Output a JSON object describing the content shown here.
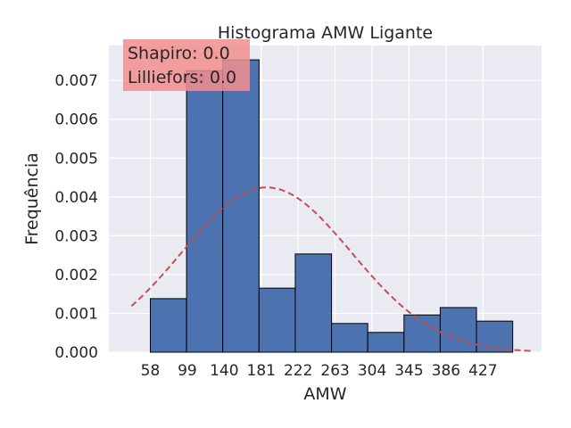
{
  "chart_data": {
    "type": "bar",
    "title": "Histograma AMW Ligante",
    "xlabel": "AMW",
    "ylabel": "Frequência",
    "bins": [
      {
        "x0": 58.0,
        "x1": 98.2,
        "density": 0.00138
      },
      {
        "x0": 98.2,
        "x1": 138.4,
        "density": 0.00725
      },
      {
        "x0": 138.4,
        "x1": 178.6,
        "density": 0.00753
      },
      {
        "x0": 178.6,
        "x1": 218.8,
        "density": 0.00165
      },
      {
        "x0": 218.8,
        "x1": 259.0,
        "density": 0.00253
      },
      {
        "x0": 259.0,
        "x1": 299.2,
        "density": 0.00074
      },
      {
        "x0": 299.2,
        "x1": 339.4,
        "density": 0.00051
      },
      {
        "x0": 339.4,
        "x1": 379.6,
        "density": 0.00096
      },
      {
        "x0": 379.6,
        "x1": 419.8,
        "density": 0.00115
      },
      {
        "x0": 419.8,
        "x1": 460.0,
        "density": 0.0008
      }
    ],
    "normal_fit": {
      "mean": 187.0,
      "std": 94.0,
      "x_range": [
        37,
        481
      ]
    },
    "xticks": [
      58,
      99,
      140,
      181,
      222,
      263,
      304,
      345,
      386,
      427
    ],
    "yticks": [
      "0.000",
      "0.001",
      "0.002",
      "0.003",
      "0.004",
      "0.005",
      "0.006",
      "0.007"
    ],
    "xlim": [
      12,
      492
    ],
    "ylim": [
      0,
      0.0079
    ],
    "grid": true,
    "annotation_lines": [
      "Shapiro: 0.0",
      "Lilliefors: 0.0"
    ],
    "colors": {
      "background": "#eaeaf2",
      "bar_fill": "#4c72b0",
      "bar_edge": "#000000",
      "fit_line": "#c44e52",
      "annotation_box": "#f28e8e",
      "grid": "#ffffff"
    }
  }
}
